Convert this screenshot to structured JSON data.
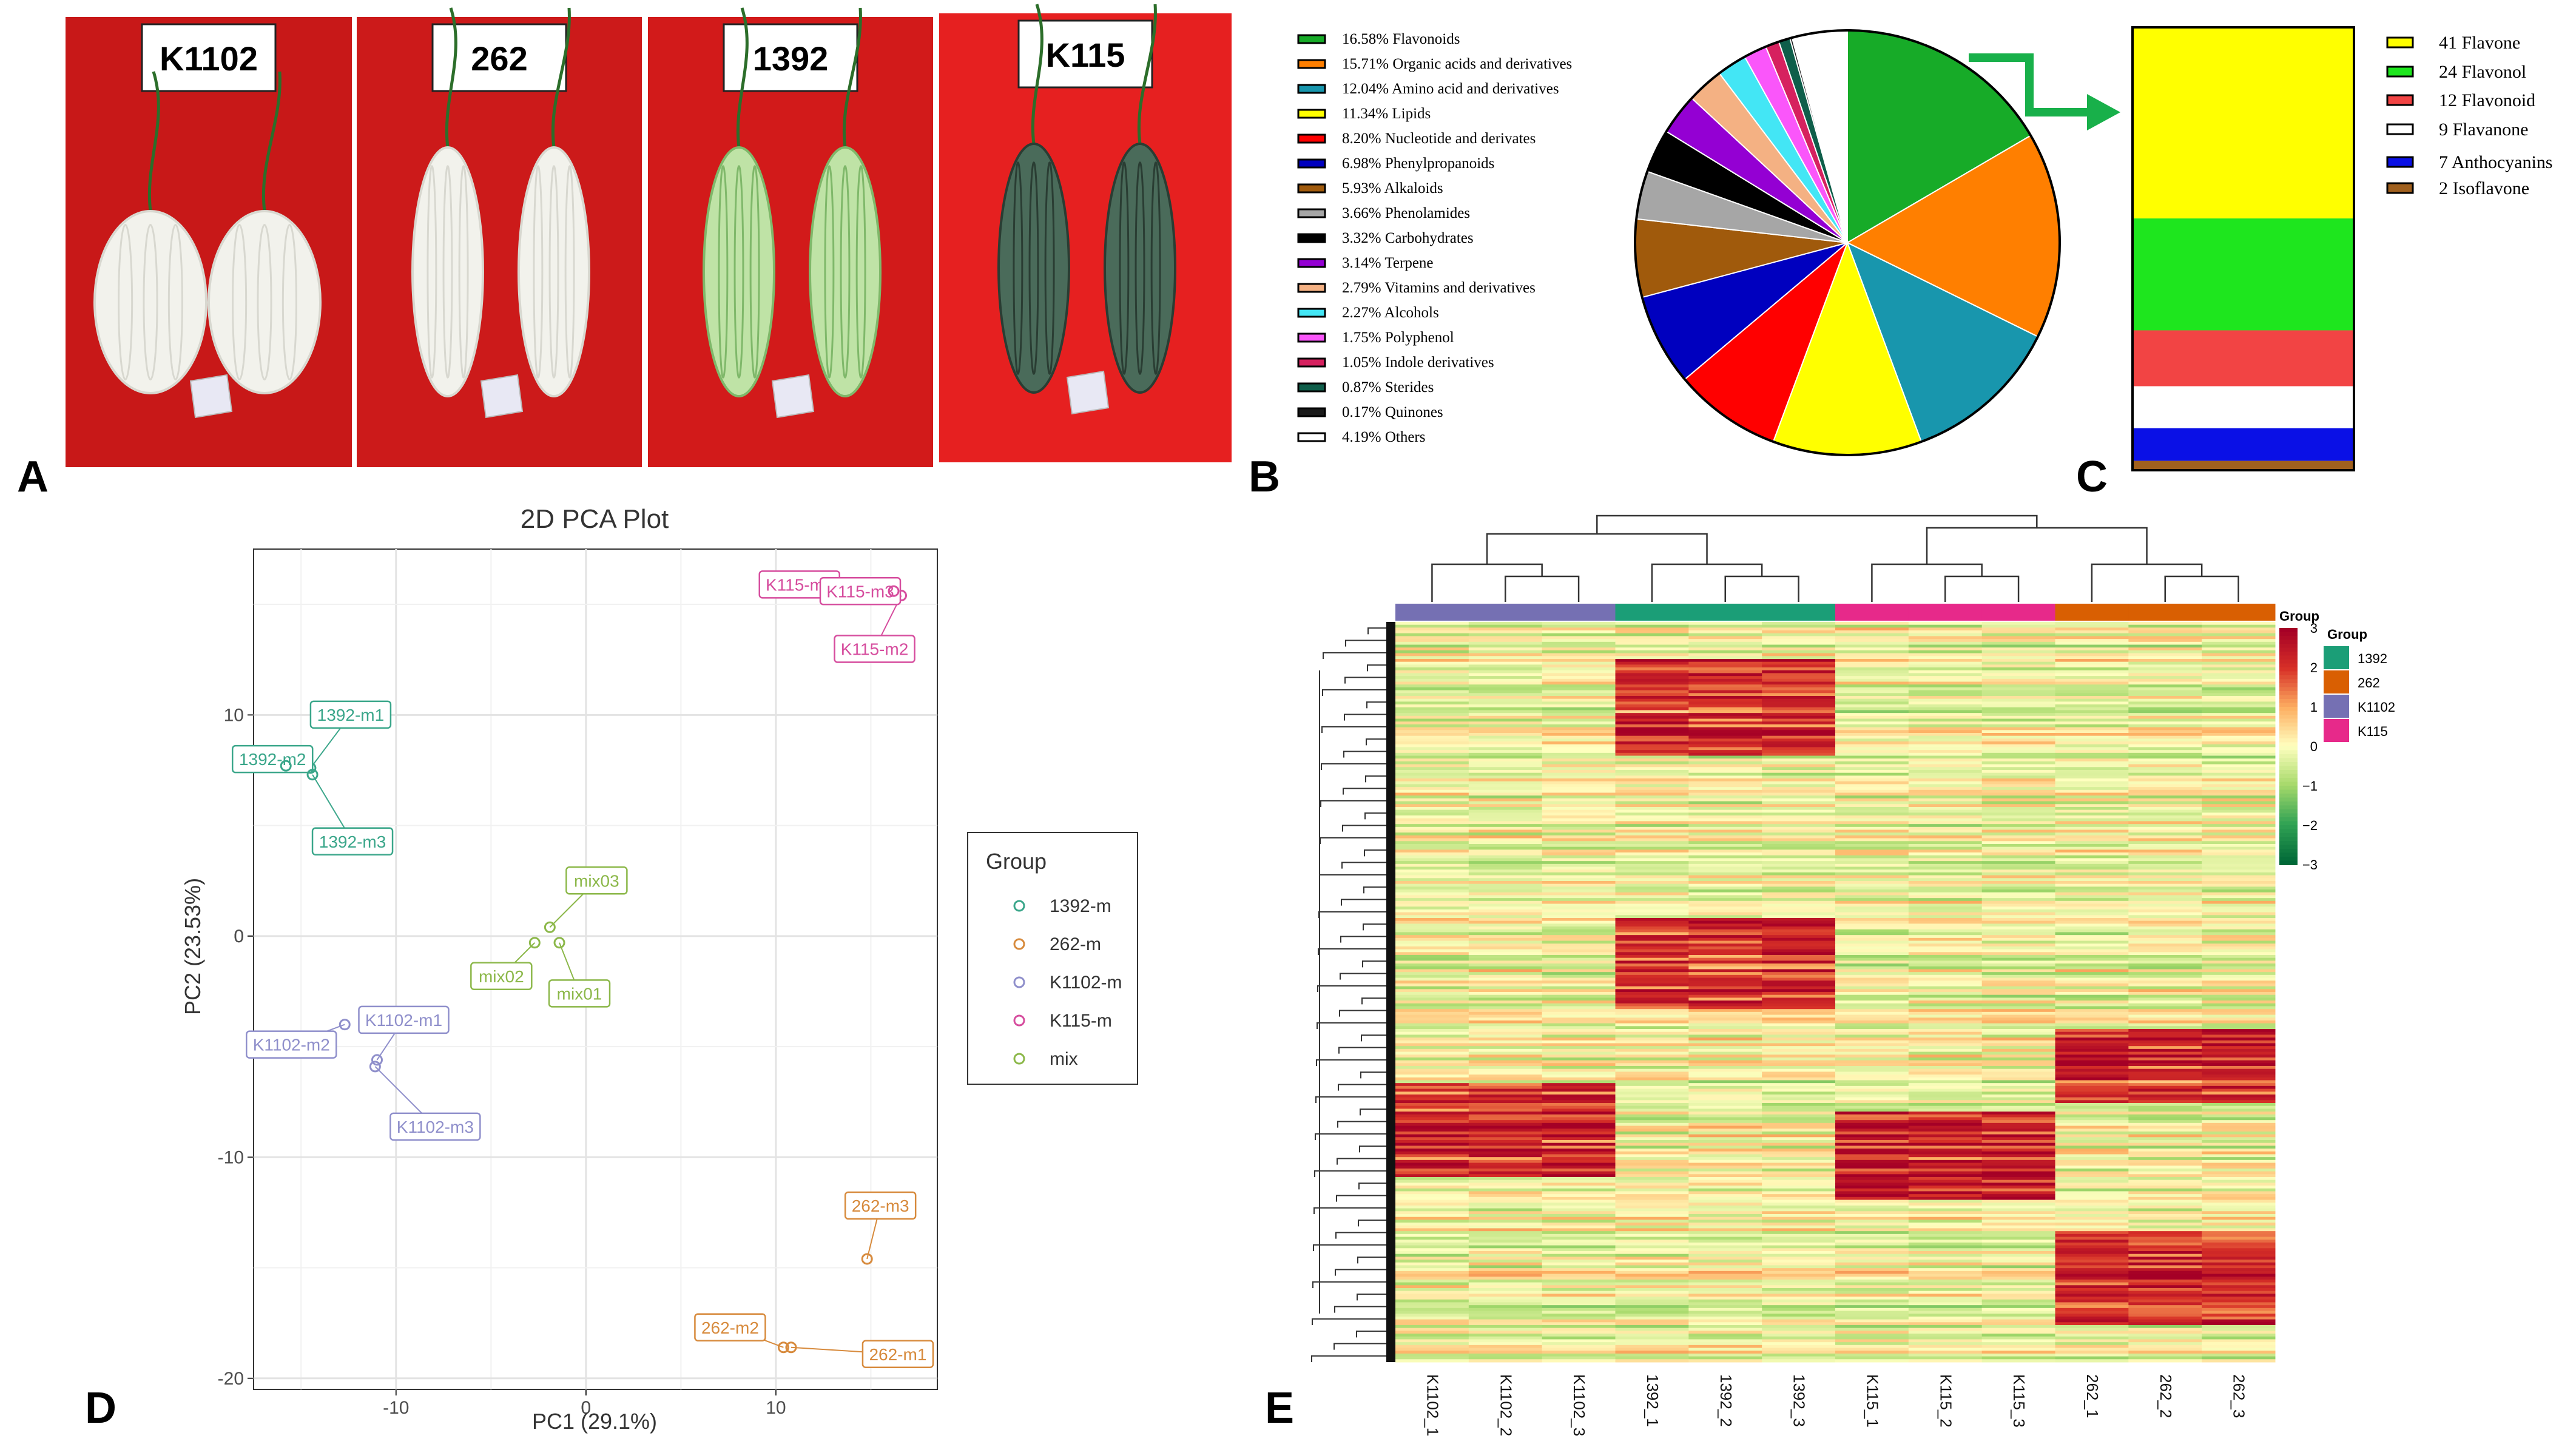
{
  "panel_letters": {
    "a": "A",
    "b": "B",
    "c": "C",
    "d": "D",
    "e": "E"
  },
  "photos": [
    {
      "label": "K1102",
      "skin": "white",
      "background": "#c81818"
    },
    {
      "label": "262",
      "skin": "white",
      "background": "#cc1a1a"
    },
    {
      "label": "1392",
      "skin": "green",
      "background": "#d21a1a"
    },
    {
      "label": "K115",
      "skin": "dark-green",
      "background": "#e62020"
    }
  ],
  "chart_data": [
    {
      "panel": "B",
      "type": "pie",
      "title": "",
      "slices": [
        {
          "label": "Flavonoids",
          "pct_text": "16.58%",
          "value": 16.58,
          "color": "#17ab28"
        },
        {
          "label": "Organic acids and derivatives",
          "pct_text": "15.71%",
          "value": 15.71,
          "color": "#ff7f00"
        },
        {
          "label": "Amino acid and derivatives",
          "pct_text": "12.04%",
          "value": 12.04,
          "color": "#1896ad"
        },
        {
          "label": "Lipids",
          "pct_text": "11.34%",
          "value": 11.34,
          "color": "#ffff00"
        },
        {
          "label": "Nucleotide and derivates",
          "pct_text": "8.20%",
          "value": 8.2,
          "color": "#ff0000"
        },
        {
          "label": "Phenylpropanoids",
          "pct_text": "6.98%",
          "value": 6.98,
          "color": "#0000bf"
        },
        {
          "label": "Alkaloids",
          "pct_text": "5.93%",
          "value": 5.93,
          "color": "#a05a0c"
        },
        {
          "label": "Phenolamides",
          "pct_text": "3.66%",
          "value": 3.66,
          "color": "#a6a6a6"
        },
        {
          "label": "Carbohydrates",
          "pct_text": "3.32%",
          "value": 3.32,
          "color": "#000000"
        },
        {
          "label": "Terpene",
          "pct_text": "3.14%",
          "value": 3.14,
          "color": "#9400d3"
        },
        {
          "label": "Vitamins and derivatives",
          "pct_text": "2.79%",
          "value": 2.79,
          "color": "#f4b183"
        },
        {
          "label": "Alcohols",
          "pct_text": "2.27%",
          "value": 2.27,
          "color": "#43e6f5"
        },
        {
          "label": "Polyphenol",
          "pct_text": "1.75%",
          "value": 1.75,
          "color": "#fa56fa"
        },
        {
          "label": "Indole derivatives",
          "pct_text": "1.05%",
          "value": 1.05,
          "color": "#d6215f"
        },
        {
          "label": "Sterides",
          "pct_text": "0.87%",
          "value": 0.87,
          "color": "#0f5e4a"
        },
        {
          "label": "Quinones",
          "pct_text": "0.17%",
          "value": 0.17,
          "color": "#1a1a1a"
        },
        {
          "label": "Others",
          "pct_text": "4.19%",
          "value": 4.19,
          "color": "#ffffff"
        }
      ]
    },
    {
      "panel": "C",
      "type": "bar",
      "stacked": true,
      "title": "",
      "segments": [
        {
          "count": 41,
          "label": "Flavone",
          "color": "#ffff00"
        },
        {
          "count": 24,
          "label": "Flavonol",
          "color": "#1ee61e"
        },
        {
          "count": 12,
          "label": "Flavonoid",
          "color": "#f24444"
        },
        {
          "count": 9,
          "label": "Flavanone",
          "color": "#ffffff"
        },
        {
          "count": 7,
          "label": "Anthocyanins",
          "color": "#0a10e6"
        },
        {
          "count": 2,
          "label": "Isoflavone",
          "color": "#a0601e"
        }
      ]
    },
    {
      "panel": "D",
      "type": "scatter",
      "title": "2D PCA Plot",
      "xlabel": "PC1 (29.1%)",
      "ylabel": "PC2 (23.53%)",
      "xlim": [
        -17.5,
        18.5
      ],
      "ylim": [
        -20.5,
        17.5
      ],
      "xticks": [
        -10,
        0,
        10
      ],
      "yticks": [
        -20,
        -10,
        0,
        10
      ],
      "grid": true,
      "legend_title": "Group",
      "legend_position": "right",
      "groups": [
        {
          "name": "1392-m",
          "color": "#3aa68a"
        },
        {
          "name": "262-m",
          "color": "#d78a3c"
        },
        {
          "name": "K1102-m",
          "color": "#8f8fcb"
        },
        {
          "name": "K115-m",
          "color": "#d64d9e"
        },
        {
          "name": "mix",
          "color": "#8cb84a"
        }
      ],
      "points": [
        {
          "label": "1392-m1",
          "group": "1392-m",
          "x": -14.5,
          "y": 7.6
        },
        {
          "label": "1392-m2",
          "group": "1392-m",
          "x": -15.8,
          "y": 7.7
        },
        {
          "label": "1392-m3",
          "group": "1392-m",
          "x": -14.4,
          "y": 7.3
        },
        {
          "label": "262-m1",
          "group": "262-m",
          "x": 10.8,
          "y": -18.6
        },
        {
          "label": "262-m2",
          "group": "262-m",
          "x": 10.4,
          "y": -18.6
        },
        {
          "label": "262-m3",
          "group": "262-m",
          "x": 14.8,
          "y": -14.6
        },
        {
          "label": "K1102-m1",
          "group": "K1102-m",
          "x": -11.0,
          "y": -5.6
        },
        {
          "label": "K1102-m2",
          "group": "K1102-m",
          "x": -12.7,
          "y": -4.0
        },
        {
          "label": "K1102-m3",
          "group": "K1102-m",
          "x": -11.1,
          "y": -5.9
        },
        {
          "label": "K115-m1",
          "group": "K115-m",
          "x": 13.7,
          "y": 15.9
        },
        {
          "label": "K115-m2",
          "group": "K115-m",
          "x": 16.6,
          "y": 15.4
        },
        {
          "label": "K115-m3",
          "group": "K115-m",
          "x": 16.2,
          "y": 15.6
        },
        {
          "label": "mix01",
          "group": "mix",
          "x": -1.4,
          "y": -0.3
        },
        {
          "label": "mix02",
          "group": "mix",
          "x": -2.7,
          "y": -0.3
        },
        {
          "label": "mix03",
          "group": "mix",
          "x": -1.9,
          "y": 0.4
        }
      ]
    },
    {
      "panel": "E",
      "type": "heatmap",
      "title": "",
      "columns": [
        "K1102_1",
        "K1102_2",
        "K1102_3",
        "1392_1",
        "1392_2",
        "1392_3",
        "K115_1",
        "K115_2",
        "K115_3",
        "262_1",
        "262_2",
        "262_3"
      ],
      "column_groups": [
        "K1102",
        "K1102",
        "K1102",
        "1392",
        "1392",
        "1392",
        "K115",
        "K115",
        "K115",
        "262",
        "262",
        "262"
      ],
      "colorbar_ticks": [
        3,
        2,
        1,
        0,
        -1,
        -2,
        -3
      ],
      "colorbar_range": [
        -3,
        3
      ],
      "legend_title": "Group",
      "groups": [
        {
          "name": "1392",
          "color": "#1b9e77"
        },
        {
          "name": "262",
          "color": "#d95f02"
        },
        {
          "name": "K1102",
          "color": "#7570b3"
        },
        {
          "name": "K115",
          "color": "#e7298a"
        }
      ]
    }
  ]
}
